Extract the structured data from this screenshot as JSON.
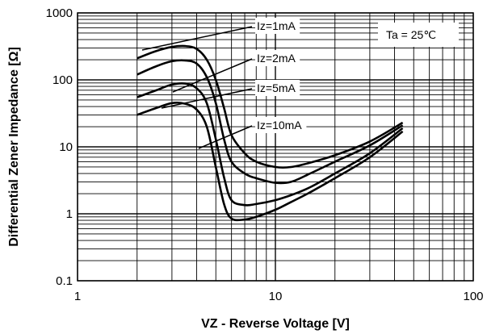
{
  "chart_data": {
    "type": "line",
    "xlabel": "VZ - Reverse Voltage [V]",
    "ylabel": "Differential Zener Impedance [Ω]",
    "x_scale": "log",
    "y_scale": "log",
    "xlim": [
      1,
      100
    ],
    "ylim": [
      0.1,
      1000
    ],
    "grid": true,
    "x_ticks": [
      "1",
      "10",
      "100"
    ],
    "y_ticks": [
      "0.1",
      "1",
      "10",
      "100",
      "1000"
    ],
    "condition": "Ta = 25℃",
    "series": [
      {
        "name": "Iz=1mA",
        "x": [
          2.0,
          2.5,
          3.0,
          3.5,
          4.0,
          4.5,
          5.0,
          5.5,
          6.0,
          7.0,
          8.0,
          10.0,
          12.0,
          15.0,
          20.0,
          30.0,
          44.0
        ],
        "y": [
          210,
          270,
          310,
          320,
          290,
          200,
          100,
          38,
          15,
          8.0,
          6.0,
          5.0,
          5.0,
          5.8,
          7.5,
          12,
          23
        ]
      },
      {
        "name": "Iz=2mA",
        "x": [
          2.0,
          2.5,
          3.0,
          3.5,
          4.0,
          4.5,
          5.0,
          5.5,
          6.0,
          7.0,
          8.0,
          10.0,
          12.0,
          15.0,
          20.0,
          30.0,
          44.0
        ],
        "y": [
          120,
          160,
          190,
          195,
          175,
          110,
          45,
          13,
          6.0,
          4.0,
          3.4,
          2.9,
          3.0,
          4.0,
          6.0,
          10.5,
          21
        ]
      },
      {
        "name": "Iz=5mA",
        "x": [
          2.0,
          2.5,
          3.0,
          3.5,
          4.0,
          4.5,
          5.0,
          5.5,
          6.0,
          7.0,
          8.0,
          10.0,
          12.0,
          15.0,
          20.0,
          30.0,
          44.0
        ],
        "y": [
          55,
          70,
          85,
          88,
          75,
          45,
          13,
          3.5,
          1.6,
          1.35,
          1.4,
          1.6,
          1.9,
          2.5,
          4.0,
          8.0,
          19
        ]
      },
      {
        "name": "Iz=10mA",
        "x": [
          2.0,
          2.5,
          3.0,
          3.5,
          4.0,
          4.5,
          5.0,
          5.5,
          6.0,
          7.0,
          8.0,
          10.0,
          12.0,
          15.0,
          20.0,
          30.0,
          44.0
        ],
        "y": [
          30,
          38,
          45,
          44,
          36,
          20,
          5.0,
          1.4,
          0.85,
          0.82,
          0.9,
          1.15,
          1.5,
          2.1,
          3.4,
          7.0,
          17
        ]
      }
    ]
  }
}
